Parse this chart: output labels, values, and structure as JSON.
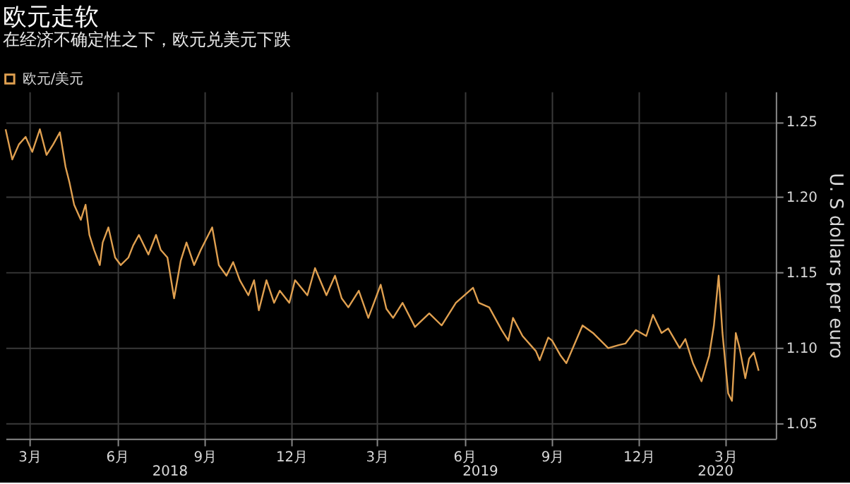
{
  "chart_data": {
    "type": "line",
    "title": "欧元走软",
    "subtitle": "在经济不确定性之下，欧元兑美元下跌",
    "ylabel": "U. S dollars per euro",
    "legend": "top left",
    "grid": true,
    "marker": "none",
    "line_style": "solid",
    "xlim": [
      "2018-02-19",
      "2020-05-08"
    ],
    "ylim": [
      1.04,
      1.27
    ],
    "yticks": [
      {
        "value": 1.05,
        "label": "1.05"
      },
      {
        "value": 1.1,
        "label": "1.10"
      },
      {
        "value": 1.15,
        "label": "1.15"
      },
      {
        "value": 1.2,
        "label": "1.20"
      },
      {
        "value": 1.25,
        "label": "1.25"
      }
    ],
    "xticks": [
      {
        "value": "2018-03-16",
        "label": "3月"
      },
      {
        "value": "2018-06-16",
        "label": "6月"
      },
      {
        "value": "2018-09-16",
        "label": "9月"
      },
      {
        "value": "2018-12-16",
        "label": "12月"
      },
      {
        "value": "2019-03-16",
        "label": "3月"
      },
      {
        "value": "2019-06-16",
        "label": "6月"
      },
      {
        "value": "2019-09-16",
        "label": "9月"
      },
      {
        "value": "2019-12-16",
        "label": "12月"
      },
      {
        "value": "2020-03-16",
        "label": "3月"
      }
    ],
    "x2lim": [
      "2018-02-19",
      "2020-05-08"
    ],
    "x2ticks": [
      {
        "value": "2018-08-10",
        "label": "2018"
      },
      {
        "value": "2019-07-02",
        "label": "2019"
      },
      {
        "value": "2020-03-05",
        "label": "2020"
      }
    ],
    "x": [
      "2018-02-19",
      "2018-02-26",
      "2018-03-05",
      "2018-03-12",
      "2018-03-19",
      "2018-03-27",
      "2018-04-03",
      "2018-04-10",
      "2018-04-17",
      "2018-04-23",
      "2018-04-27",
      "2018-05-02",
      "2018-05-09",
      "2018-05-14",
      "2018-05-18",
      "2018-05-23",
      "2018-05-29",
      "2018-06-01",
      "2018-06-07",
      "2018-06-14",
      "2018-06-20",
      "2018-06-28",
      "2018-07-03",
      "2018-07-09",
      "2018-07-19",
      "2018-07-27",
      "2018-08-01",
      "2018-08-08",
      "2018-08-15",
      "2018-08-22",
      "2018-08-28",
      "2018-09-05",
      "2018-09-12",
      "2018-09-24",
      "2018-10-01",
      "2018-10-09",
      "2018-10-16",
      "2018-10-23",
      "2018-11-01",
      "2018-11-07",
      "2018-11-12",
      "2018-11-20",
      "2018-11-28",
      "2018-12-04",
      "2018-12-14",
      "2018-12-20",
      "2019-01-02",
      "2019-01-10",
      "2019-01-22",
      "2019-01-31",
      "2019-02-07",
      "2019-02-14",
      "2019-02-25",
      "2019-03-07",
      "2019-03-20",
      "2019-03-26",
      "2019-04-02",
      "2019-04-12",
      "2019-04-25",
      "2019-05-10",
      "2019-05-23",
      "2019-06-07",
      "2019-06-25",
      "2019-07-01",
      "2019-07-12",
      "2019-07-25",
      "2019-08-01",
      "2019-08-06",
      "2019-08-16",
      "2019-08-30",
      "2019-09-03",
      "2019-09-12",
      "2019-09-16",
      "2019-09-25",
      "2019-10-01",
      "2019-10-18",
      "2019-10-29",
      "2019-11-14",
      "2019-11-25",
      "2019-12-02",
      "2019-12-13",
      "2019-12-24",
      "2019-12-31",
      "2020-01-09",
      "2020-01-16",
      "2020-01-28",
      "2020-02-03",
      "2020-02-11",
      "2020-02-20",
      "2020-02-28",
      "2020-03-04",
      "2020-03-09",
      "2020-03-13",
      "2020-03-19",
      "2020-03-23",
      "2020-03-27",
      "2020-03-31",
      "2020-04-06",
      "2020-04-10",
      "2020-04-15",
      "2020-04-20"
    ],
    "series": [
      {
        "name": "欧元/美元",
        "color": "#e0a050",
        "values": [
          1.245,
          1.225,
          1.235,
          1.24,
          1.23,
          1.245,
          1.228,
          1.235,
          1.243,
          1.22,
          1.21,
          1.195,
          1.185,
          1.195,
          1.175,
          1.165,
          1.155,
          1.17,
          1.18,
          1.16,
          1.155,
          1.16,
          1.168,
          1.175,
          1.162,
          1.175,
          1.165,
          1.16,
          1.133,
          1.158,
          1.17,
          1.155,
          1.165,
          1.18,
          1.155,
          1.148,
          1.157,
          1.145,
          1.135,
          1.145,
          1.125,
          1.145,
          1.13,
          1.138,
          1.13,
          1.145,
          1.135,
          1.153,
          1.135,
          1.148,
          1.133,
          1.127,
          1.138,
          1.12,
          1.142,
          1.126,
          1.12,
          1.13,
          1.114,
          1.123,
          1.115,
          1.13,
          1.14,
          1.13,
          1.127,
          1.112,
          1.105,
          1.12,
          1.108,
          1.098,
          1.092,
          1.107,
          1.105,
          1.095,
          1.09,
          1.115,
          1.11,
          1.1,
          1.102,
          1.103,
          1.112,
          1.108,
          1.122,
          1.11,
          1.113,
          1.1,
          1.106,
          1.09,
          1.078,
          1.095,
          1.115,
          1.148,
          1.11,
          1.07,
          1.065,
          1.11,
          1.1,
          1.08,
          1.093,
          1.097,
          1.085
        ]
      }
    ]
  }
}
